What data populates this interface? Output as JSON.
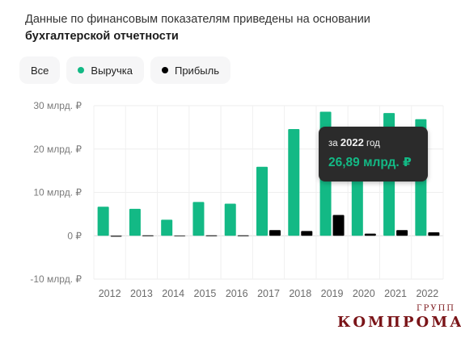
{
  "header": {
    "text_main": "Данные по финансовым показателям приведены на основании ",
    "text_highlight": "бухгалтерской отчетности"
  },
  "filters": [
    {
      "label": "Все",
      "dot_color": ""
    },
    {
      "label": "Выручка",
      "dot_color": "#13b985"
    },
    {
      "label": "Прибыль",
      "dot_color": "#000000"
    }
  ],
  "tooltip": {
    "prefix": "за",
    "year": "2022",
    "suffix": "год",
    "value": "26,89 млрд. ₽"
  },
  "watermark": {
    "main": "КОМПРОМАТ",
    "sub": "ГРУПП"
  },
  "chart_data": {
    "type": "bar",
    "categories": [
      "2012",
      "2013",
      "2014",
      "2015",
      "2016",
      "2017",
      "2018",
      "2019",
      "2020",
      "2021",
      "2022"
    ],
    "series": [
      {
        "name": "Выручка",
        "color": "#13b985",
        "values": [
          6.7,
          6.2,
          3.7,
          7.8,
          7.4,
          15.9,
          24.6,
          28.6,
          13.5,
          28.3,
          26.89
        ]
      },
      {
        "name": "Прибыль",
        "color": "#000000",
        "values": [
          -0.2,
          0.1,
          0.0,
          0.1,
          0.1,
          1.3,
          1.1,
          4.8,
          0.5,
          1.3,
          0.8
        ]
      }
    ],
    "yticks": [
      30,
      20,
      10,
      0,
      -10
    ],
    "ytick_labels": [
      "30 млрд. ₽",
      "20 млрд. ₽",
      "10 млрд. ₽",
      "0 ₽",
      "-10 млрд. ₽"
    ],
    "ylim": [
      -10,
      30
    ],
    "grid": true,
    "legend": "top-left"
  }
}
